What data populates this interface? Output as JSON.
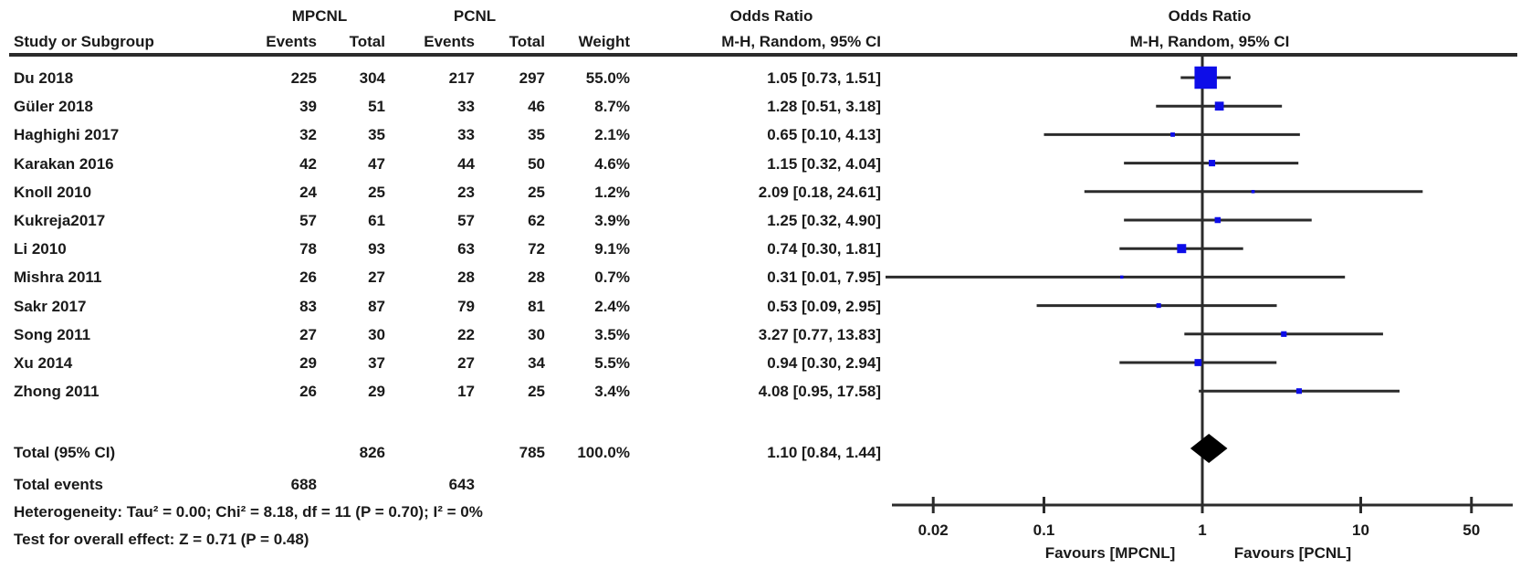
{
  "headers": {
    "study": "Study or Subgroup",
    "events": "Events",
    "total": "Total",
    "weight": "Weight",
    "or_title": "Odds Ratio",
    "or_sub": "M-H, Random, 95% CI",
    "group1": "MPCNL",
    "group2": "PCNL"
  },
  "chart_data": {
    "type": "scatter",
    "variant": "forest-plot-meta-analysis",
    "effect_measure": "Odds Ratio",
    "method": "M-H, Random, 95% CI",
    "group1": "MPCNL",
    "group2": "PCNL",
    "studies": [
      {
        "study": "Du 2018",
        "events1": "225",
        "total1": "304",
        "events2": "217",
        "total2": "297",
        "weight": "55.0%",
        "weight_pct": 55.0,
        "or": 1.05,
        "ci_low": 0.73,
        "ci_high": 1.51,
        "or_ci": "1.05 [0.73, 1.51]"
      },
      {
        "study": "Güler 2018",
        "events1": "39",
        "total1": "51",
        "events2": "33",
        "total2": "46",
        "weight": "8.7%",
        "weight_pct": 8.7,
        "or": 1.28,
        "ci_low": 0.51,
        "ci_high": 3.18,
        "or_ci": "1.28 [0.51, 3.18]"
      },
      {
        "study": "Haghighi 2017",
        "events1": "32",
        "total1": "35",
        "events2": "33",
        "total2": "35",
        "weight": "2.1%",
        "weight_pct": 2.1,
        "or": 0.65,
        "ci_low": 0.1,
        "ci_high": 4.13,
        "or_ci": "0.65 [0.10, 4.13]"
      },
      {
        "study": "Karakan 2016",
        "events1": "42",
        "total1": "47",
        "events2": "44",
        "total2": "50",
        "weight": "4.6%",
        "weight_pct": 4.6,
        "or": 1.15,
        "ci_low": 0.32,
        "ci_high": 4.04,
        "or_ci": "1.15 [0.32, 4.04]"
      },
      {
        "study": "Knoll 2010",
        "events1": "24",
        "total1": "25",
        "events2": "23",
        "total2": "25",
        "weight": "1.2%",
        "weight_pct": 1.2,
        "or": 2.09,
        "ci_low": 0.18,
        "ci_high": 24.61,
        "or_ci": "2.09 [0.18, 24.61]"
      },
      {
        "study": "Kukreja2017",
        "events1": "57",
        "total1": "61",
        "events2": "57",
        "total2": "62",
        "weight": "3.9%",
        "weight_pct": 3.9,
        "or": 1.25,
        "ci_low": 0.32,
        "ci_high": 4.9,
        "or_ci": "1.25 [0.32, 4.90]"
      },
      {
        "study": "Li 2010",
        "events1": "78",
        "total1": "93",
        "events2": "63",
        "total2": "72",
        "weight": "9.1%",
        "weight_pct": 9.1,
        "or": 0.74,
        "ci_low": 0.3,
        "ci_high": 1.81,
        "or_ci": "0.74 [0.30, 1.81]"
      },
      {
        "study": "Mishra 2011",
        "events1": "26",
        "total1": "27",
        "events2": "28",
        "total2": "28",
        "weight": "0.7%",
        "weight_pct": 0.7,
        "or": 0.31,
        "ci_low": 0.01,
        "ci_high": 7.95,
        "or_ci": "0.31 [0.01, 7.95]"
      },
      {
        "study": "Sakr 2017",
        "events1": "83",
        "total1": "87",
        "events2": "79",
        "total2": "81",
        "weight": "2.4%",
        "weight_pct": 2.4,
        "or": 0.53,
        "ci_low": 0.09,
        "ci_high": 2.95,
        "or_ci": "0.53 [0.09, 2.95]"
      },
      {
        "study": "Song 2011",
        "events1": "27",
        "total1": "30",
        "events2": "22",
        "total2": "30",
        "weight": "3.5%",
        "weight_pct": 3.5,
        "or": 3.27,
        "ci_low": 0.77,
        "ci_high": 13.83,
        "or_ci": "3.27 [0.77, 13.83]"
      },
      {
        "study": "Xu 2014",
        "events1": "29",
        "total1": "37",
        "events2": "27",
        "total2": "34",
        "weight": "5.5%",
        "weight_pct": 5.5,
        "or": 0.94,
        "ci_low": 0.3,
        "ci_high": 2.94,
        "or_ci": "0.94 [0.30, 2.94]"
      },
      {
        "study": "Zhong 2011",
        "events1": "26",
        "total1": "29",
        "events2": "17",
        "total2": "25",
        "weight": "3.4%",
        "weight_pct": 3.4,
        "or": 4.08,
        "ci_low": 0.95,
        "ci_high": 17.58,
        "or_ci": "4.08 [0.95, 17.58]"
      }
    ],
    "total": {
      "label": "Total (95% CI)",
      "total1": "826",
      "total2": "785",
      "weight": "100.0%",
      "or": 1.1,
      "ci_low": 0.84,
      "ci_high": 1.44,
      "or_ci": "1.10 [0.84, 1.44]",
      "events_label": "Total events",
      "events1": "688",
      "events2": "643"
    },
    "axis": {
      "scale": "log",
      "xlim": [
        0.01,
        60
      ],
      "tick_values": [
        0.02,
        0.1,
        1,
        10,
        50
      ],
      "tick_labels": [
        "0.02",
        "0.1",
        "1",
        "10",
        "50"
      ],
      "favours_left": "Favours [MPCNL]",
      "favours_right": "Favours [PCNL]"
    },
    "heterogeneity": "Heterogeneity: Tau² = 0.00; Chi² = 8.18, df = 11 (P = 0.70); I² = 0%",
    "overall_effect": "Test for overall effect: Z = 0.71 (P = 0.48)"
  },
  "colors": {
    "marker_blue": "#0d0de8",
    "line": "#2b2b2b",
    "diamond": "#000000",
    "text": "#1a1a1a"
  }
}
